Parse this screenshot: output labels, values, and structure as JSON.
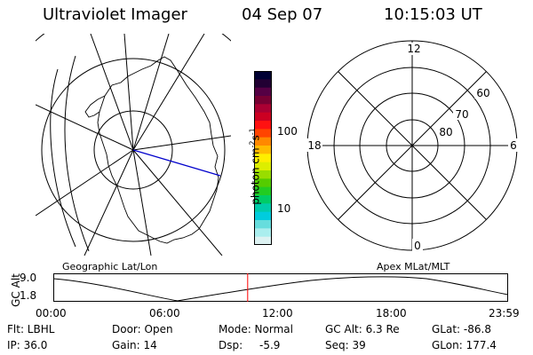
{
  "header": {
    "title": "Ultraviolet Imager",
    "date": "04 Sep 07",
    "time": "10:15:03 UT"
  },
  "colorbar": {
    "label": "photon cm",
    "label_sup1": "-2",
    "label_mid": "s",
    "label_sup2": "-1",
    "ticks": [
      "100",
      "10"
    ],
    "colors": [
      "#000033",
      "#220033",
      "#550044",
      "#770033",
      "#aa0033",
      "#cc0022",
      "#ff1111",
      "#ff4400",
      "#ff8800",
      "#ffbb00",
      "#ffee00",
      "#ddee00",
      "#99dd00",
      "#55cc00",
      "#22cc22",
      "#00cc66",
      "#00ccaa",
      "#00ccdd",
      "#66dddd",
      "#aaeeee",
      "#ddf2f2"
    ]
  },
  "left_map": {
    "caption": "Geographic Lat/Lon"
  },
  "right_map": {
    "caption": "Apex MLat/MLT",
    "mlt_labels": {
      "top": "12",
      "bottom": "0",
      "left": "18",
      "right": "6"
    },
    "mlat_labels": [
      "60",
      "70",
      "80"
    ]
  },
  "timeline": {
    "ylabel": "GC Alt",
    "yticks": [
      "9.0",
      "1.8"
    ],
    "xticks": [
      "00:00",
      "06:00",
      "12:00",
      "18:00",
      "23:59"
    ],
    "marker_time": "10:15",
    "marker_color": "#ff0000"
  },
  "footer": {
    "flt": "Flt: LBHL",
    "ip": "IP: 36.0",
    "door": "Door: Open",
    "gain": "Gain: 14",
    "mode": "Mode: Normal",
    "dsp_label": "Dsp:",
    "dsp_value": "-5.9",
    "gcalt": "GC Alt: 6.3 Re",
    "seq": "Seq: 39",
    "glat": "GLat: -86.8",
    "glon": "GLon: 177.4"
  }
}
